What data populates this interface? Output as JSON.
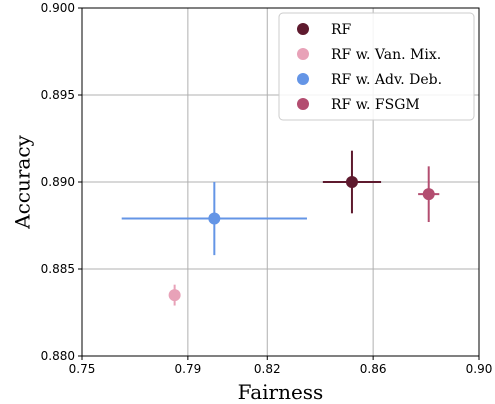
{
  "chart_data": {
    "type": "scatter",
    "xlabel": "Fairness",
    "ylabel": "Accuracy",
    "xlim": [
      0.75,
      0.9
    ],
    "ylim": [
      0.88,
      0.9
    ],
    "x_ticks": [
      0.75,
      0.79,
      0.82,
      0.86,
      0.9
    ],
    "x_tick_labels": [
      "0.75",
      "0.79",
      "0.82",
      "0.86",
      "0.90"
    ],
    "y_ticks": [
      0.88,
      0.885,
      0.89,
      0.895,
      0.9
    ],
    "y_tick_labels": [
      "0.880",
      "0.885",
      "0.890",
      "0.895",
      "0.900"
    ],
    "grid": true,
    "legend_position": "top-right",
    "series": [
      {
        "name": "RF",
        "color": "#5e1a2e",
        "x": 0.852,
        "y": 0.89,
        "x_err": 0.011,
        "y_err": 0.0018
      },
      {
        "name": "RF w. Van. Mix.",
        "color": "#e8a2b8",
        "x": 0.785,
        "y": 0.8835,
        "x_err": 0.002,
        "y_err": 0.0006
      },
      {
        "name": "RF w. Adv. Deb.",
        "color": "#6495e6",
        "x": 0.8,
        "y": 0.8879,
        "x_err": 0.035,
        "y_err": 0.0021
      },
      {
        "name": "RF w. FSGM",
        "color": "#b34d70",
        "x": 0.881,
        "y": 0.8893,
        "x_err": 0.004,
        "y_err": 0.0016
      }
    ]
  }
}
